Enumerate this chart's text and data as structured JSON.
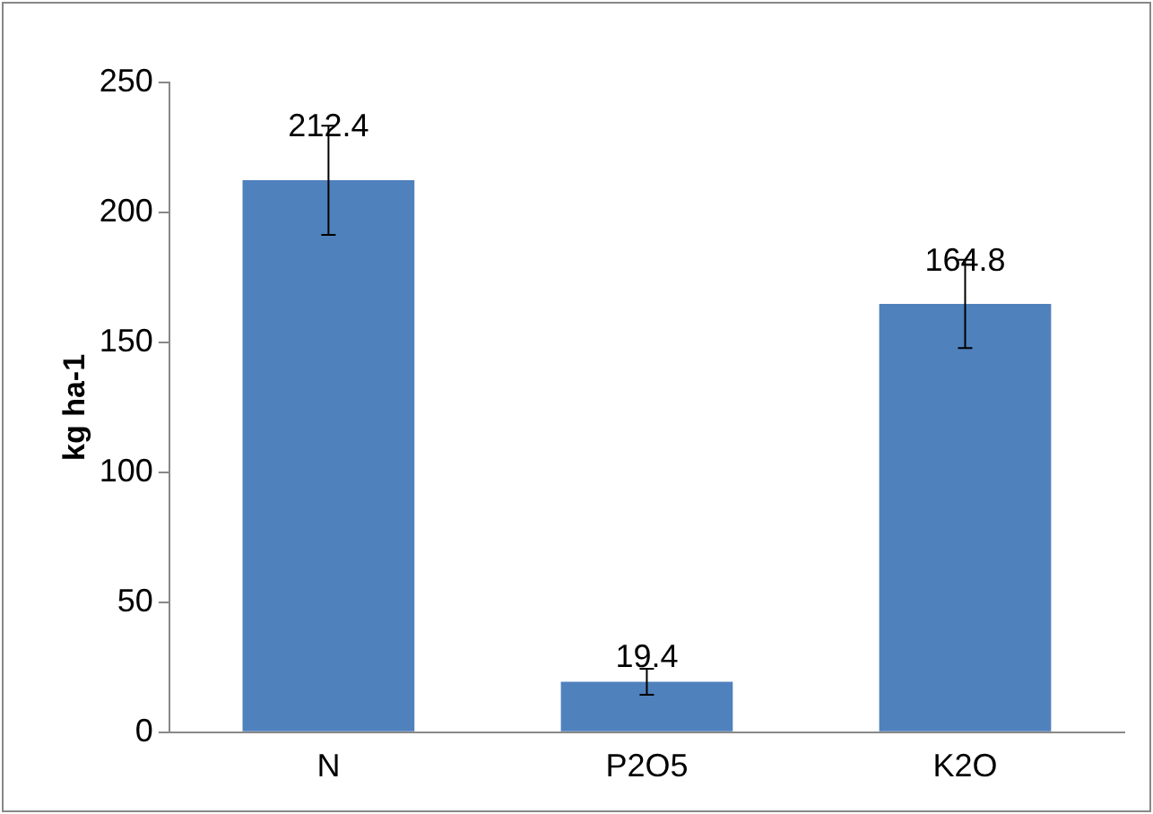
{
  "chart_data": {
    "type": "bar",
    "ylabel": "kg ha-1",
    "categories": [
      "N",
      "P2O5",
      "K2O"
    ],
    "values": [
      212.4,
      19.4,
      164.8
    ],
    "color": "#4f81bd",
    "errors": [
      21,
      5,
      17
    ],
    "ylim": [
      0,
      250
    ],
    "yticks": [
      0,
      50,
      100,
      150,
      200,
      250
    ],
    "grid": false,
    "legend": false,
    "data_labels": true
  }
}
